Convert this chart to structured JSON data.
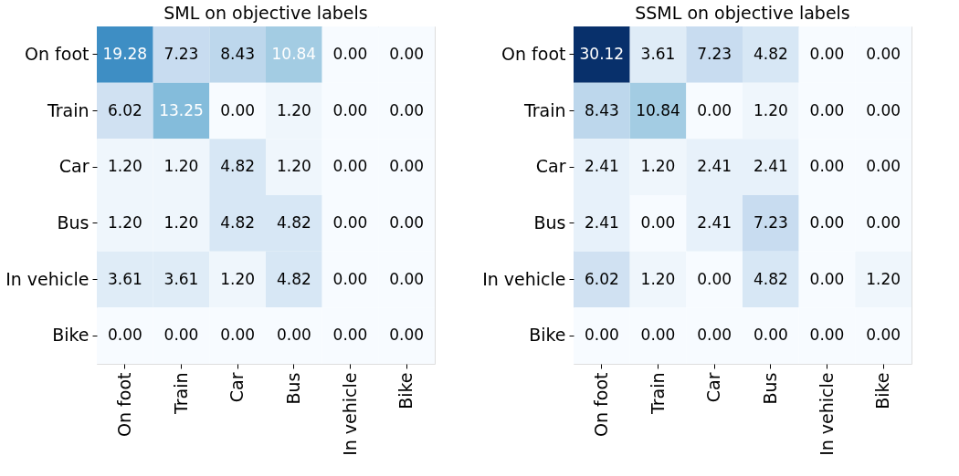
{
  "chart_data": [
    {
      "type": "heatmap",
      "title": "SML on objective labels",
      "categories": [
        "On foot",
        "Train",
        "Car",
        "Bus",
        "In vehicle",
        "Bike"
      ],
      "y_categories": [
        "On foot",
        "Train",
        "Car",
        "Bus",
        "In vehicle",
        "Bike"
      ],
      "cells": [
        [
          19.28,
          7.23,
          8.43,
          10.84,
          0,
          0
        ],
        [
          6.02,
          13.25,
          0,
          1.2,
          0,
          0
        ],
        [
          1.2,
          1.2,
          4.82,
          1.2,
          0,
          0
        ],
        [
          1.2,
          1.2,
          4.82,
          4.82,
          0,
          0
        ],
        [
          3.61,
          3.61,
          1.2,
          4.82,
          0,
          0
        ],
        [
          0,
          0,
          0,
          0,
          0,
          0
        ]
      ],
      "cell_labels": [
        [
          "19.28",
          "7.23",
          "8.43",
          "10.84",
          "0.00",
          "0.00"
        ],
        [
          "6.02",
          "13.25",
          "0.00",
          "1.20",
          "0.00",
          "0.00"
        ],
        [
          "1.20",
          "1.20",
          "4.82",
          "1.20",
          "0.00",
          "0.00"
        ],
        [
          "1.20",
          "1.20",
          "4.82",
          "4.82",
          "0.00",
          "0.00"
        ],
        [
          "3.61",
          "3.61",
          "1.20",
          "4.82",
          "0.00",
          "0.00"
        ],
        [
          "0.00",
          "0.00",
          "0.00",
          "0.00",
          "0.00",
          "0.00"
        ]
      ]
    },
    {
      "type": "heatmap",
      "title": "SSML on objective labels",
      "categories": [
        "On foot",
        "Train",
        "Car",
        "Bus",
        "In vehicle",
        "Bike"
      ],
      "y_categories": [
        "On foot",
        "Train",
        "Car",
        "Bus",
        "In vehicle",
        "Bike"
      ],
      "cells": [
        [
          30.12,
          3.61,
          7.23,
          4.82,
          0,
          0
        ],
        [
          8.43,
          10.84,
          0,
          1.2,
          0,
          0
        ],
        [
          2.41,
          1.2,
          2.41,
          2.41,
          0,
          0
        ],
        [
          2.41,
          0,
          2.41,
          7.23,
          0,
          0
        ],
        [
          6.02,
          1.2,
          0,
          4.82,
          0,
          1.2
        ],
        [
          0,
          0,
          0,
          0,
          0,
          0
        ]
      ],
      "cell_labels": [
        [
          "30.12",
          "3.61",
          "7.23",
          "4.82",
          "0.00",
          "0.00"
        ],
        [
          "8.43",
          "10.84",
          "0.00",
          "1.20",
          "0.00",
          "0.00"
        ],
        [
          "2.41",
          "1.20",
          "2.41",
          "2.41",
          "0.00",
          "0.00"
        ],
        [
          "2.41",
          "0.00",
          "2.41",
          "7.23",
          "0.00",
          "0.00"
        ],
        [
          "6.02",
          "1.20",
          "0.00",
          "4.82",
          "0.00",
          "1.20"
        ],
        [
          "0.00",
          "0.00",
          "0.00",
          "0.00",
          "0.00",
          "0.00"
        ]
      ]
    }
  ]
}
